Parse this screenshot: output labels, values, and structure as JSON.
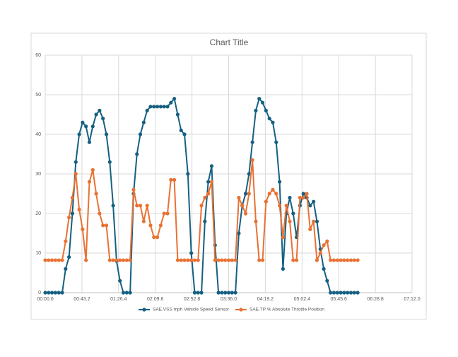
{
  "chart_data": {
    "type": "line",
    "title": "Chart Title",
    "x": [
      0,
      4,
      8,
      12,
      16,
      20,
      24,
      28,
      32,
      36,
      40,
      44,
      48,
      52,
      56,
      60,
      64,
      68,
      72,
      76,
      80,
      84,
      88,
      92,
      96,
      100,
      104,
      108,
      112,
      116,
      120,
      124,
      128,
      132,
      136,
      140,
      144,
      148,
      152,
      156,
      160,
      164,
      168,
      172,
      176,
      180,
      184,
      188,
      192,
      196,
      200,
      204,
      208,
      212,
      216,
      220,
      224,
      228,
      232,
      236,
      240,
      244,
      248,
      252,
      256,
      260,
      264,
      268,
      272,
      276,
      280,
      284,
      288,
      292,
      296,
      300,
      304,
      308,
      312,
      316,
      320,
      324,
      328,
      332,
      336,
      340,
      344,
      348,
      352,
      356,
      360,
      364,
      368
    ],
    "series": [
      {
        "name": "SAE.VSS mph Vehicle Speed Sensor",
        "color": "#156082",
        "values": [
          0,
          0,
          0,
          0,
          0,
          0,
          6,
          9,
          20,
          33,
          40,
          43,
          42,
          38,
          42,
          45,
          46,
          44,
          40,
          33,
          22,
          8,
          3,
          0,
          0,
          0,
          25,
          35,
          40,
          43,
          46,
          47,
          47,
          47,
          47,
          47,
          47,
          48,
          49,
          45,
          41,
          40,
          30,
          10,
          0,
          0,
          0,
          18,
          28,
          32,
          12,
          0,
          0,
          0,
          0,
          0,
          0,
          15,
          22,
          25,
          30,
          38,
          46,
          49,
          48,
          46,
          44,
          43,
          38,
          28,
          6,
          20,
          24,
          20,
          14,
          22,
          25,
          24,
          22,
          23,
          18,
          11,
          6,
          3,
          0,
          0,
          0,
          0,
          0,
          0,
          0,
          0,
          0
        ]
      },
      {
        "name": "SAE.TP % Absolute Throttle Position",
        "color": "#e97132",
        "values": [
          8.2,
          8.2,
          8.2,
          8.2,
          8.2,
          8.2,
          13,
          19,
          24,
          30,
          21,
          16,
          8.2,
          28,
          31,
          25,
          20,
          17,
          17,
          8.2,
          8.2,
          8.2,
          8.2,
          8.2,
          8.2,
          8.2,
          26,
          22,
          22,
          18,
          22,
          17,
          14,
          14,
          17,
          20,
          20,
          28.5,
          28.5,
          8.2,
          8.2,
          8.2,
          8.2,
          8.2,
          8.2,
          8.2,
          22,
          24,
          25,
          28,
          8.2,
          8.2,
          8.2,
          8.2,
          8.2,
          8.2,
          8.2,
          24,
          22,
          20,
          25,
          33.5,
          18,
          8.2,
          8.2,
          23,
          25,
          26,
          25,
          22,
          14,
          22,
          18,
          8.2,
          8.2,
          24,
          24,
          25,
          16,
          18,
          8.2,
          10,
          12,
          13,
          8.2,
          8.2,
          8.2,
          8.2,
          8.2,
          8.2,
          8.2,
          8.2,
          8.2
        ]
      }
    ],
    "xlim": [
      0,
      432
    ],
    "xticks": [
      {
        "value": 0,
        "label": "00:00.0"
      },
      {
        "value": 43.2,
        "label": "00:43.2"
      },
      {
        "value": 86.4,
        "label": "01:26.4"
      },
      {
        "value": 129.6,
        "label": "02:09.6"
      },
      {
        "value": 172.8,
        "label": "02:52.8"
      },
      {
        "value": 216,
        "label": "03:36.0"
      },
      {
        "value": 259.2,
        "label": "04:19.2"
      },
      {
        "value": 302.4,
        "label": "05:02.4"
      },
      {
        "value": 345.6,
        "label": "05:45.6"
      },
      {
        "value": 388.8,
        "label": "06:28.8"
      },
      {
        "value": 432,
        "label": "07:12.0"
      }
    ],
    "ylim": [
      0,
      60
    ],
    "yticks": [
      0,
      10,
      20,
      30,
      40,
      50,
      60
    ],
    "grid": true,
    "legend": "bottom"
  }
}
